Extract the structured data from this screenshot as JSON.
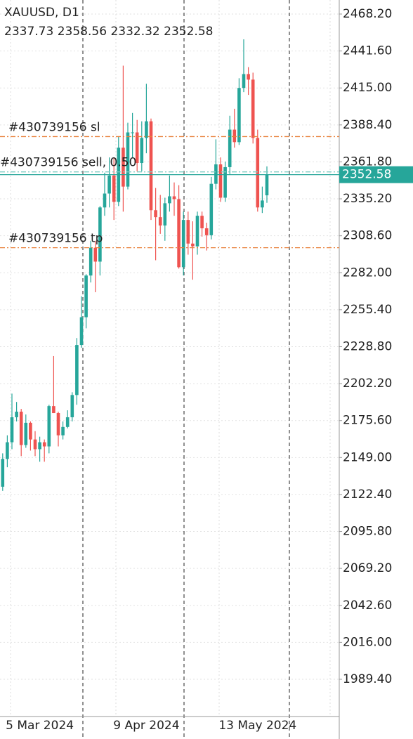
{
  "chart_data": {
    "type": "candlestick",
    "title": "XAUUSD, D1",
    "categories": [
      null,
      null,
      null,
      null,
      null,
      null,
      null,
      null,
      "5 Mar 2024",
      null,
      null,
      null,
      null,
      null,
      null,
      null,
      null,
      null,
      null,
      null,
      null,
      null,
      null,
      null,
      null,
      null,
      null,
      null,
      null,
      null,
      null,
      "9 Apr 2024",
      null,
      null,
      null,
      null,
      null,
      null,
      null,
      null,
      null,
      null,
      null,
      null,
      null,
      null,
      null,
      null,
      null,
      null,
      null,
      null,
      null,
      null,
      null,
      "13 May 2024",
      null,
      null
    ],
    "open": [
      2128,
      2148,
      2160,
      2178,
      2182,
      2158,
      2174,
      2162,
      2155,
      2160,
      2157,
      2186,
      2181,
      2165,
      2171,
      2178,
      2194,
      2230,
      2250,
      2280,
      2300,
      2290,
      2329,
      2339,
      2352,
      2333,
      2372,
      2344,
      2383,
      2383,
      2361,
      2379,
      2391,
      2327,
      2322,
      2316,
      2332,
      2337,
      2335,
      2286,
      2320,
      2303,
      2301,
      2323,
      2314,
      2309,
      2346,
      2360,
      2336,
      2358,
      2385,
      2376,
      2415,
      2425,
      2421,
      2379,
      2329,
      2337.73
    ],
    "high": [
      2152,
      2165,
      2195,
      2189,
      2184,
      2180,
      2175,
      2168,
      2164,
      2162,
      2187,
      2222,
      2182,
      2175,
      2183,
      2196,
      2235,
      2265,
      2281,
      2305,
      2305,
      2330,
      2354,
      2365,
      2365,
      2380,
      2431,
      2390,
      2397,
      2392,
      2391,
      2418,
      2393,
      2343,
      2338,
      2336,
      2352,
      2347,
      2345,
      2326,
      2326,
      2319,
      2326,
      2326,
      2318,
      2351,
      2378,
      2365,
      2362,
      2395,
      2400,
      2422,
      2450,
      2430,
      2426,
      2385,
      2344,
      2358.56
    ],
    "low": [
      2125,
      2142,
      2155,
      2175,
      2150,
      2156,
      2154,
      2150,
      2146,
      2146,
      2152,
      2181,
      2157,
      2162,
      2170,
      2175,
      2187,
      2228,
      2242,
      2275,
      2268,
      2280,
      2323,
      2329,
      2320,
      2330,
      2326,
      2342,
      2365,
      2355,
      2355,
      2368,
      2320,
      2291,
      2310,
      2305,
      2326,
      2323,
      2285,
      2280,
      2295,
      2277,
      2295,
      2308,
      2298,
      2306,
      2342,
      2333,
      2333,
      2353,
      2372,
      2374,
      2412,
      2410,
      2375,
      2326,
      2325,
      2332.32
    ],
    "close": [
      2148,
      2160,
      2178,
      2182,
      2158,
      2174,
      2162,
      2155,
      2160,
      2157,
      2186,
      2181,
      2165,
      2171,
      2178,
      2194,
      2230,
      2250,
      2280,
      2300,
      2290,
      2329,
      2339,
      2352,
      2333,
      2372,
      2344,
      2383,
      2383,
      2361,
      2379,
      2391,
      2327,
      2322,
      2316,
      2332,
      2337,
      2335,
      2286,
      2320,
      2303,
      2301,
      2323,
      2314,
      2309,
      2346,
      2360,
      2336,
      2358,
      2385,
      2376,
      2415,
      2425,
      2421,
      2379,
      2329,
      2334,
      2352.58
    ],
    "up_color": "#26a69a",
    "down_color": "#ef5350",
    "ylim": [
      1962.6,
      2478.3
    ],
    "yticks": [
      {
        "value": 1989.4,
        "label": "1989.40"
      },
      {
        "value": 2016,
        "label": "2016.00"
      },
      {
        "value": 2042.6,
        "label": "2042.60"
      },
      {
        "value": 2069.2,
        "label": "2069.20"
      },
      {
        "value": 2095.8,
        "label": "2095.80"
      },
      {
        "value": 2122.4,
        "label": "2122.40"
      },
      {
        "value": 2149,
        "label": "2149.00"
      },
      {
        "value": 2175.6,
        "label": "2175.60"
      },
      {
        "value": 2202.2,
        "label": "2202.20"
      },
      {
        "value": 2228.8,
        "label": "2228.80"
      },
      {
        "value": 2255.4,
        "label": "2255.40"
      },
      {
        "value": 2282,
        "label": "2282.00"
      },
      {
        "value": 2308.6,
        "label": "2308.60"
      },
      {
        "value": 2335.2,
        "label": "2335.20"
      },
      {
        "value": 2361.8,
        "label": "2361.80"
      },
      {
        "value": 2388.4,
        "label": "2388.40"
      },
      {
        "value": 2415,
        "label": "2415.00"
      },
      {
        "value": 2441.6,
        "label": "2441.60"
      },
      {
        "value": 2468.2,
        "label": "2468.20"
      }
    ],
    "grid": true,
    "orders": [
      {
        "label": "#430739156 sl",
        "price": 2380,
        "color": "#e8803a"
      },
      {
        "label": "#430739156 sell, 0.50",
        "price": 2354.6,
        "color": "#7fcdc4"
      },
      {
        "label": "#430739156 tp",
        "price": 2300,
        "color": "#e8803a"
      }
    ]
  }
}
